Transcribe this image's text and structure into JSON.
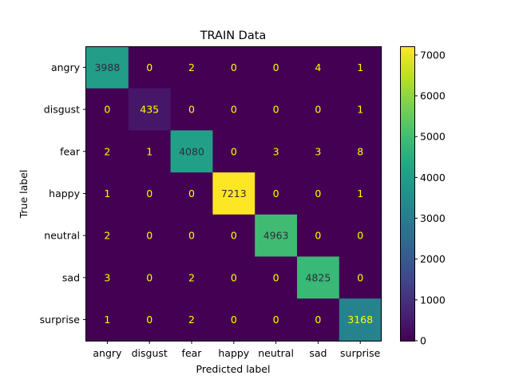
{
  "chart_data": {
    "type": "heatmap",
    "title": "TRAIN Data",
    "xlabel": "Predicted label",
    "ylabel": "True label",
    "x_categories": [
      "angry",
      "disgust",
      "fear",
      "happy",
      "neutral",
      "sad",
      "surprise"
    ],
    "y_categories": [
      "angry",
      "disgust",
      "fear",
      "happy",
      "neutral",
      "sad",
      "surprise"
    ],
    "values": [
      [
        3988,
        0,
        2,
        0,
        0,
        4,
        1
      ],
      [
        0,
        435,
        0,
        0,
        0,
        0,
        1
      ],
      [
        2,
        1,
        4080,
        0,
        3,
        3,
        8
      ],
      [
        1,
        0,
        0,
        7213,
        0,
        0,
        1
      ],
      [
        2,
        0,
        0,
        0,
        4963,
        0,
        0
      ],
      [
        3,
        0,
        2,
        0,
        0,
        4825,
        0
      ],
      [
        1,
        0,
        2,
        0,
        0,
        0,
        3168
      ]
    ],
    "colormap": "viridis",
    "colorbar": {
      "range": [
        0,
        7213
      ],
      "ticks": [
        0,
        1000,
        2000,
        3000,
        4000,
        5000,
        6000,
        7000
      ]
    },
    "grid": false,
    "text_colors": {
      "dark_cell": "#ffff00",
      "light_cell": "#2d2d3a"
    }
  }
}
